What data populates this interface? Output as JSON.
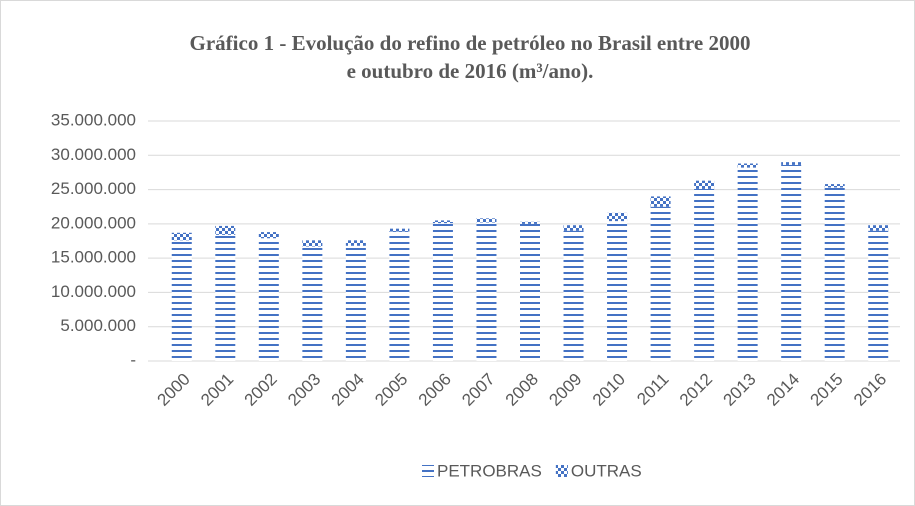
{
  "chart_data": {
    "type": "stacked_bar",
    "title_lines": [
      "Gráfico 1 - Evolução do refino de petróleo no Brasil entre 2000",
      "e outubro de 2016 (m³/ano)."
    ],
    "categories": [
      "2000",
      "2001",
      "2002",
      "2003",
      "2004",
      "2005",
      "2006",
      "2007",
      "2008",
      "2009",
      "2010",
      "2011",
      "2012",
      "2013",
      "2014",
      "2015",
      "2016"
    ],
    "series": [
      {
        "name": "PETROBRAS",
        "color": "#4472c4",
        "pattern": "horizontal-dash",
        "values": [
          17600000,
          18400000,
          17900000,
          16700000,
          16800000,
          18900000,
          20100000,
          20200000,
          20000000,
          19000000,
          20400000,
          22500000,
          25100000,
          28200000,
          28600000,
          25300000,
          19000000
        ]
      },
      {
        "name": "OUTRAS",
        "color": "#4472c4",
        "pattern": "checker",
        "values": [
          1100000,
          1300000,
          900000,
          900000,
          800000,
          400000,
          400000,
          600000,
          300000,
          800000,
          1200000,
          1500000,
          1200000,
          600000,
          400000,
          500000,
          800000
        ]
      }
    ],
    "ylim": [
      0,
      35000000
    ],
    "yticks": [
      {
        "value": 0,
        "label": "-"
      },
      {
        "value": 5000000,
        "label": "5.000.000"
      },
      {
        "value": 10000000,
        "label": "10.000.000"
      },
      {
        "value": 15000000,
        "label": "15.000.000"
      },
      {
        "value": 20000000,
        "label": "20.000.000"
      },
      {
        "value": 25000000,
        "label": "25.000.000"
      },
      {
        "value": 30000000,
        "label": "30.000.000"
      },
      {
        "value": 35000000,
        "label": "35.000.000"
      }
    ],
    "grid": true,
    "legend": "bottom"
  }
}
